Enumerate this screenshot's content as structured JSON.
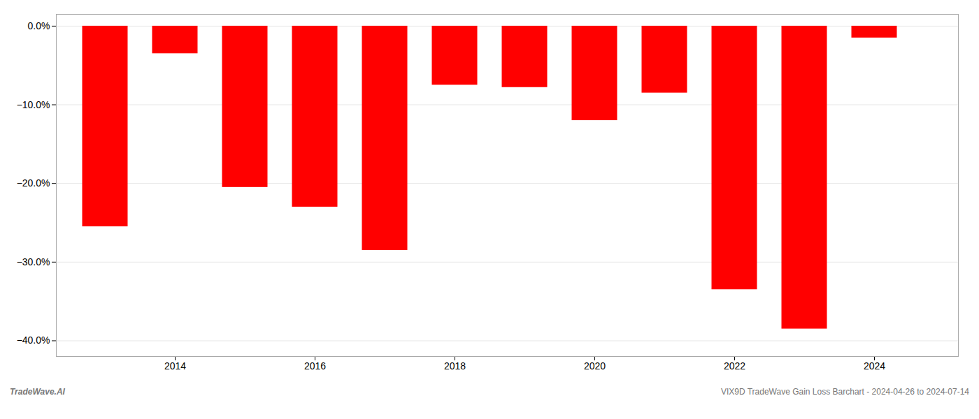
{
  "chart_data": {
    "type": "bar",
    "x": [
      2013,
      2014,
      2015,
      2016,
      2017,
      2018,
      2019,
      2020,
      2021,
      2022,
      2023,
      2024
    ],
    "values": [
      -25.5,
      -3.5,
      -20.5,
      -23.0,
      -28.5,
      -7.5,
      -7.8,
      -12.0,
      -8.5,
      -33.5,
      -38.5,
      -1.5
    ],
    "color": "#ff0000",
    "xlim": [
      2012.3,
      2025.2
    ],
    "xticks": [
      2014,
      2016,
      2018,
      2020,
      2022,
      2024
    ],
    "ylim": [
      -42,
      1.5
    ],
    "yticks": [
      {
        "value": 0.0,
        "label": "0.0%"
      },
      {
        "value": -10.0,
        "label": "−10.0%"
      },
      {
        "value": -20.0,
        "label": "−20.0%"
      },
      {
        "value": -30.0,
        "label": "−30.0%"
      },
      {
        "value": -40.0,
        "label": "−40.0%"
      }
    ],
    "grid": true,
    "annotations": [
      "TradeWave.AI",
      "VIX9D TradeWave Gain Loss Barchart - 2024-04-26 to 2024-07-14"
    ]
  }
}
